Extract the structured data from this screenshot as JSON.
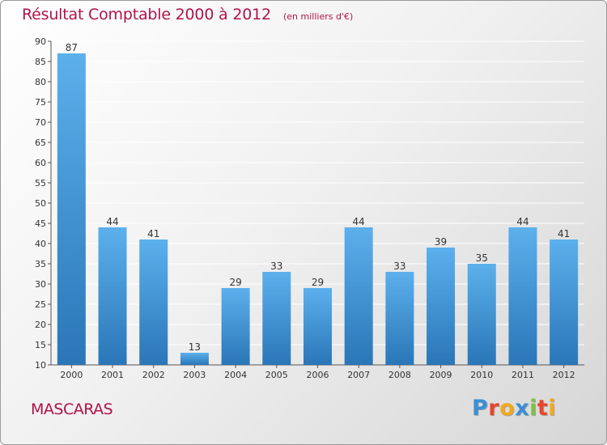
{
  "header": {
    "title": "Résultat Comptable 2000 à 2012",
    "subtitle": "(en milliers d'€)"
  },
  "footer": {
    "commune": "MASCARAS",
    "logo_text": "Proxiti",
    "logo_colors": [
      "#3a8fd6",
      "#e8452c",
      "#f2a81d",
      "#3a8fd6",
      "#7cc242",
      "#e8452c",
      "#f2a81d"
    ]
  },
  "colors": {
    "title": "#b0134c",
    "bar_light": "#5cb0ec",
    "bar_dark": "#2a76b8",
    "grid": "#ffffff",
    "axis": "#555555"
  },
  "chart_data": {
    "type": "bar",
    "title": "Résultat Comptable 2000 à 2012",
    "subtitle": "(en milliers d'€)",
    "xlabel": "",
    "ylabel": "",
    "categories": [
      "2000",
      "2001",
      "2002",
      "2003",
      "2004",
      "2005",
      "2006",
      "2007",
      "2008",
      "2009",
      "2010",
      "2011",
      "2012"
    ],
    "values": [
      87,
      44,
      41,
      13,
      29,
      33,
      29,
      44,
      33,
      39,
      35,
      44,
      41
    ],
    "ylim": [
      10,
      90
    ],
    "yticks": [
      10,
      15,
      20,
      25,
      30,
      35,
      40,
      45,
      50,
      55,
      60,
      65,
      70,
      75,
      80,
      85,
      90
    ],
    "grid": true,
    "legend": "none"
  }
}
